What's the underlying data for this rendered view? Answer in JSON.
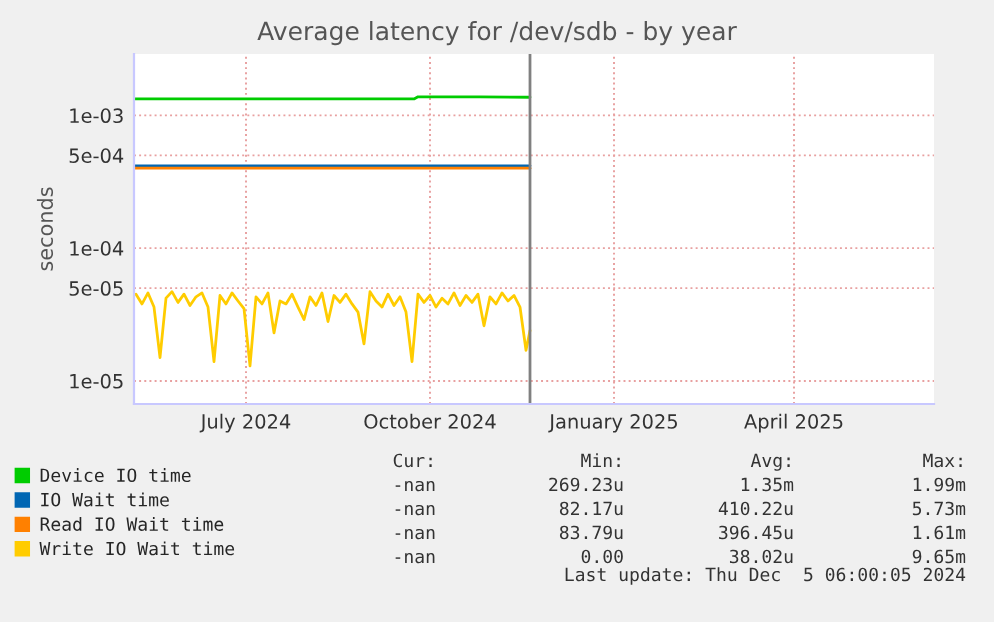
{
  "chart_data": {
    "type": "line",
    "title": "Average latency for /dev/sdb - by year",
    "ylabel": "seconds",
    "log": "y",
    "grid": true,
    "legend": "bottom left",
    "xlim": [
      "2024-05-21",
      "2025-06-25"
    ],
    "xticks": [
      {
        "value": "2024-07-16",
        "label": "July 2024"
      },
      {
        "value": "2024-10-16",
        "label": "October 2024"
      },
      {
        "value": "2025-01-16",
        "label": "January 2025"
      },
      {
        "value": "2025-04-16",
        "label": "April 2025"
      }
    ],
    "ylim": [
      6.7e-06,
      0.0029
    ],
    "yticks": [
      {
        "value": 1e-05,
        "label": "1e-05"
      },
      {
        "value": 5e-05,
        "label": "5e-05"
      },
      {
        "value": 0.0001,
        "label": "1e-04"
      },
      {
        "value": 0.0005,
        "label": "5e-04"
      },
      {
        "value": 0.001,
        "label": "1e-03"
      }
    ],
    "ref_lines": [
      {
        "axis": "x",
        "value": "2024-12-05",
        "label": null,
        "color": "#808080"
      }
    ],
    "series": [
      {
        "name": "Device IO time",
        "color": "#00cc00",
        "x": [
          "2024-05-21",
          "2024-06-15",
          "2024-07-20",
          "2024-09-01",
          "2024-10-08",
          "2024-10-10",
          "2024-11-10",
          "2024-12-05"
        ],
        "values": [
          0.00133,
          0.00133,
          0.00133,
          0.00133,
          0.00133,
          0.00138,
          0.00138,
          0.00137
        ]
      },
      {
        "name": "IO Wait time",
        "color": "#0066b3",
        "x": [
          "2024-05-21",
          "2024-12-05"
        ],
        "values": [
          0.000417,
          0.000417
        ]
      },
      {
        "name": "Read IO Wait time",
        "color": "#ff8000",
        "x": [
          "2024-05-21",
          "2024-12-05"
        ],
        "values": [
          0.0004,
          0.0004
        ]
      },
      {
        "name": "Write IO Wait time",
        "color": "#ffcc00",
        "x": [
          "2024-05-22",
          "2024-05-25",
          "2024-05-28",
          "2024-05-31",
          "2024-06-03",
          "2024-06-06",
          "2024-06-09",
          "2024-06-12",
          "2024-06-15",
          "2024-06-18",
          "2024-06-21",
          "2024-06-24",
          "2024-06-27",
          "2024-06-30",
          "2024-07-03",
          "2024-07-06",
          "2024-07-09",
          "2024-07-12",
          "2024-07-15",
          "2024-07-18",
          "2024-07-21",
          "2024-07-24",
          "2024-07-27",
          "2024-07-30",
          "2024-08-02",
          "2024-08-05",
          "2024-08-08",
          "2024-08-11",
          "2024-08-14",
          "2024-08-17",
          "2024-08-20",
          "2024-08-23",
          "2024-08-26",
          "2024-08-29",
          "2024-09-01",
          "2024-09-04",
          "2024-09-07",
          "2024-09-10",
          "2024-09-13",
          "2024-09-16",
          "2024-09-19",
          "2024-09-22",
          "2024-09-25",
          "2024-09-28",
          "2024-10-01",
          "2024-10-04",
          "2024-10-07",
          "2024-10-10",
          "2024-10-13",
          "2024-10-16",
          "2024-10-19",
          "2024-10-22",
          "2024-10-25",
          "2024-10-28",
          "2024-10-31",
          "2024-11-03",
          "2024-11-06",
          "2024-11-09",
          "2024-11-12",
          "2024-11-15",
          "2024-11-18",
          "2024-11-21",
          "2024-11-24",
          "2024-11-27",
          "2024-11-30",
          "2024-12-03",
          "2024-12-05"
        ],
        "values": [
          4.5e-05,
          3.8e-05,
          4.6e-05,
          3.6e-05,
          1.5e-05,
          4.2e-05,
          4.7e-05,
          3.9e-05,
          4.5e-05,
          3.7e-05,
          4.3e-05,
          4.6e-05,
          3.6e-05,
          1.4e-05,
          4.4e-05,
          3.8e-05,
          4.6e-05,
          4e-05,
          3.5e-05,
          1.3e-05,
          4.3e-05,
          3.8e-05,
          4.6e-05,
          2.3e-05,
          4e-05,
          3.8e-05,
          4.5e-05,
          3.6e-05,
          2.9e-05,
          4.3e-05,
          3.7e-05,
          4.6e-05,
          2.8e-05,
          4.4e-05,
          3.9e-05,
          4.5e-05,
          3.8e-05,
          3.3e-05,
          1.9e-05,
          4.7e-05,
          4e-05,
          3.6e-05,
          4.5e-05,
          3.7e-05,
          4.3e-05,
          3.3e-05,
          1.4e-05,
          4.5e-05,
          3.9e-05,
          4.4e-05,
          3.6e-05,
          4.2e-05,
          3.8e-05,
          4.6e-05,
          3.7e-05,
          4.4e-05,
          3.9e-05,
          4.5e-05,
          2.6e-05,
          4.3e-05,
          3.8e-05,
          4.6e-05,
          4e-05,
          4.4e-05,
          3.6e-05,
          1.7e-05,
          2.4e-05
        ]
      }
    ],
    "annotations": [
      "Cur:",
      "Min:",
      "Avg:",
      "Max:",
      "-nan",
      "269.23u",
      "1.35m",
      "1.99m",
      "-nan",
      "82.17u",
      "410.22u",
      "5.73m",
      "-nan",
      "83.79u",
      "396.45u",
      "1.61m",
      "-nan",
      "0.00",
      "38.02u",
      "9.65m",
      "Last update: Thu Dec  5 06:00:05 2024"
    ]
  }
}
